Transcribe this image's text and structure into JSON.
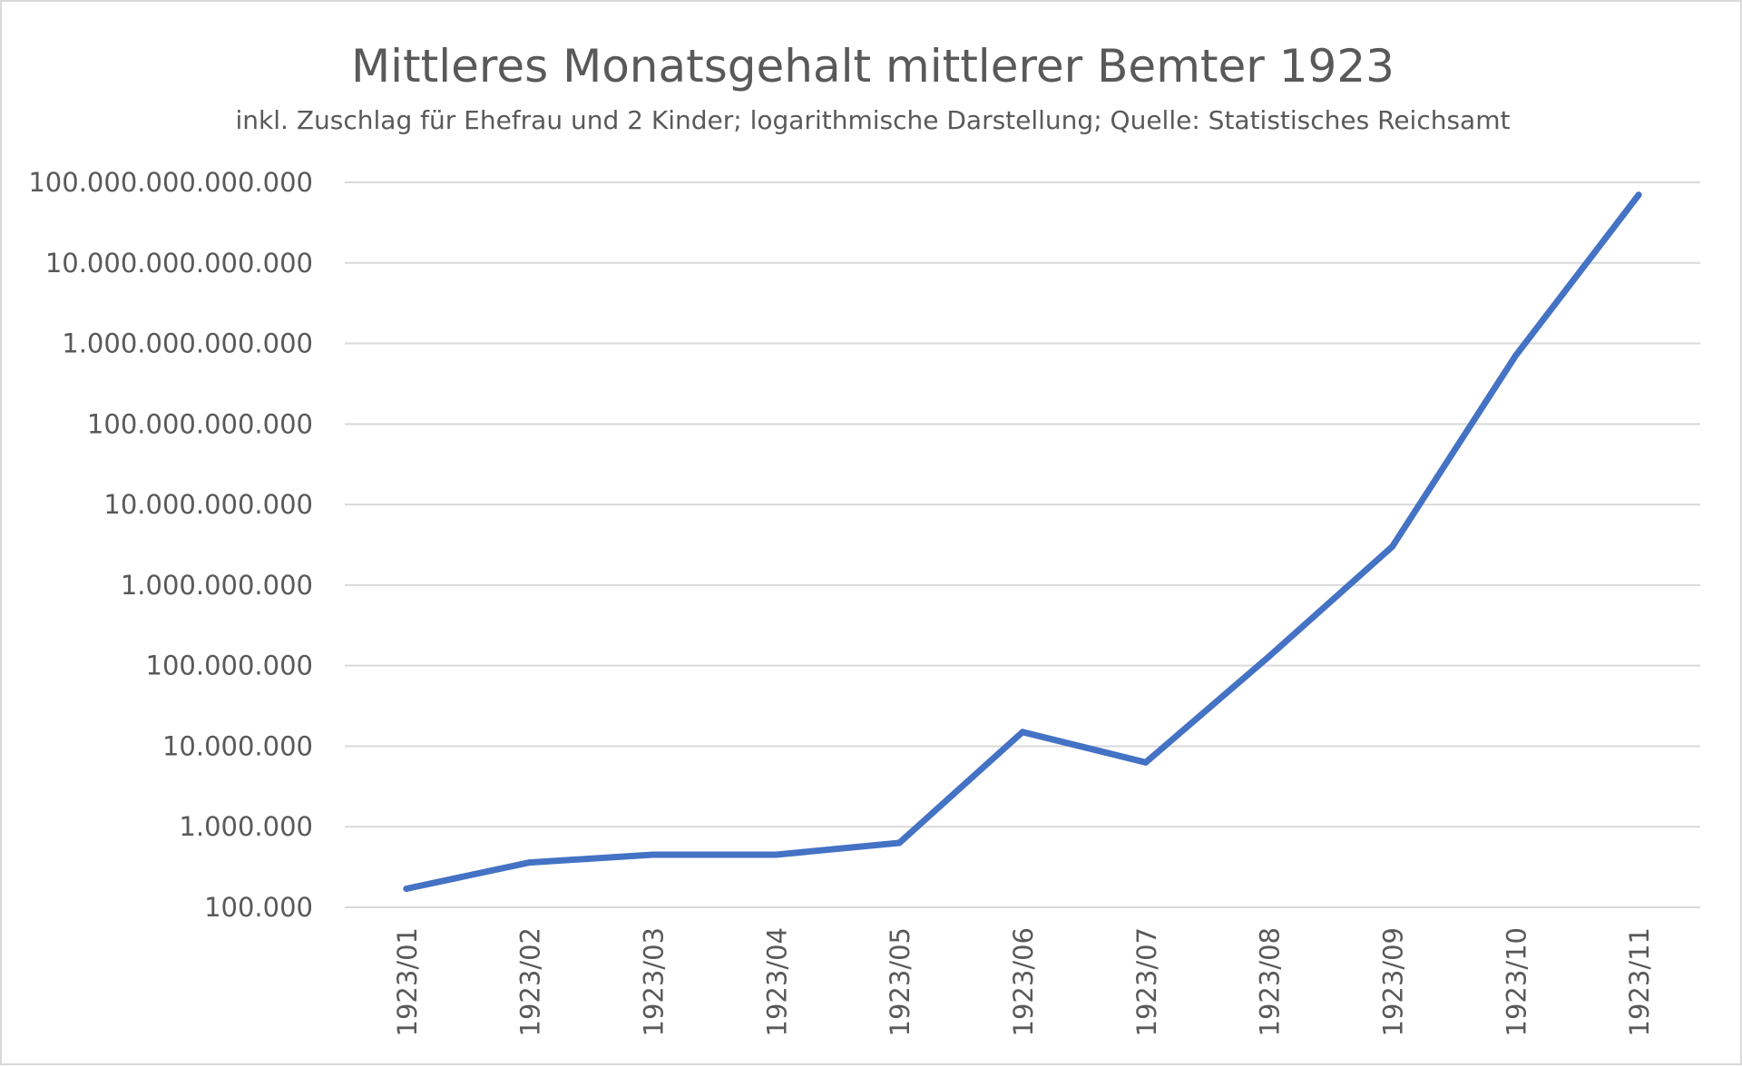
{
  "chart_data": {
    "type": "line",
    "title": "Mittleres Monatsgehalt mittlerer Bemter 1923",
    "subtitle": "inkl. Zuschlag für Ehefrau und 2 Kinder; logarithmische Darstellung; Quelle: Statistisches Reichsamt",
    "xlabel": "",
    "ylabel": "",
    "yscale": "log",
    "ylim": [
      100000,
      100000000000000
    ],
    "yticks": [
      100000,
      1000000,
      10000000,
      100000000,
      1000000000,
      10000000000,
      100000000000,
      1000000000000,
      10000000000000,
      100000000000000
    ],
    "ytick_labels": [
      "100.000",
      "1.000.000",
      "10.000.000",
      "100.000.000",
      "1.000.000.000",
      "10.000.000.000",
      "100.000.000.000",
      "1.000.000.000.000",
      "10.000.000.000.000",
      "100.000.000.000.000"
    ],
    "categories": [
      "1923/01",
      "1923/02",
      "1923/03",
      "1923/04",
      "1923/05",
      "1923/06",
      "1923/07",
      "1923/08",
      "1923/09",
      "1923/10",
      "1923/11"
    ],
    "grid": true,
    "legend": "none",
    "series": [
      {
        "color": "#4472c4",
        "values": [
          170000,
          360000,
          450000,
          450000,
          630000,
          15000000,
          6300000,
          130000000,
          3000000000,
          700000000000,
          70000000000000
        ]
      }
    ]
  }
}
